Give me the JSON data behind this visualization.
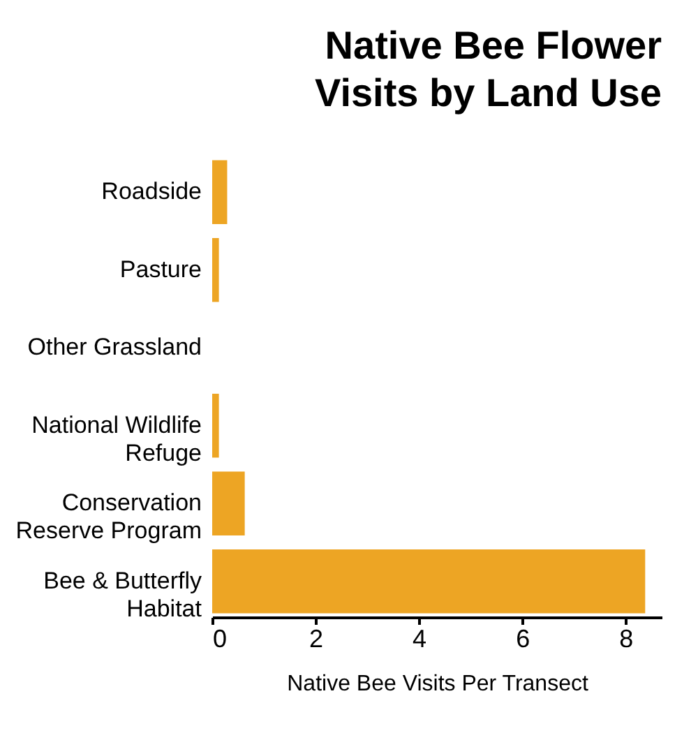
{
  "chart_data": {
    "type": "bar",
    "orientation": "horizontal",
    "title": "Native Bee Flower Visits by Land Use",
    "xlabel": "Native Bee Visits Per Transect",
    "categories": [
      "Roadside",
      "Pasture",
      "Other Grassland",
      "National Wildlife Refuge",
      "Conservation Reserve Program",
      "Bee & Butterfly Habitat"
    ],
    "values": [
      0.29,
      0.13,
      0,
      0.13,
      0.63,
      8.38
    ],
    "color": "#eda524",
    "xlim": [
      0,
      8.7
    ],
    "xticks": [
      0,
      2,
      4,
      6,
      8
    ],
    "grid": false
  }
}
